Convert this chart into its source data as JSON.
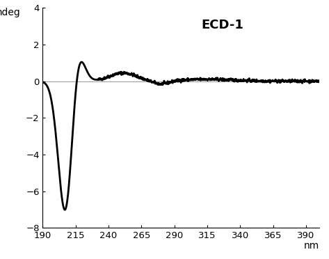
{
  "title": "ECD-1",
  "ylabel": "mdeg",
  "xlabel": "nm",
  "xlim": [
    190,
    400
  ],
  "ylim": [
    -8,
    4
  ],
  "yticks": [
    -8,
    -6,
    -4,
    -2,
    0,
    2,
    4
  ],
  "xticks": [
    190,
    215,
    240,
    265,
    290,
    315,
    340,
    365,
    390
  ],
  "line_color": "#000000",
  "background_color": "#ffffff",
  "title_fontsize": 13,
  "axis_fontsize": 10,
  "tick_fontsize": 9.5,
  "linewidth": 2.0
}
